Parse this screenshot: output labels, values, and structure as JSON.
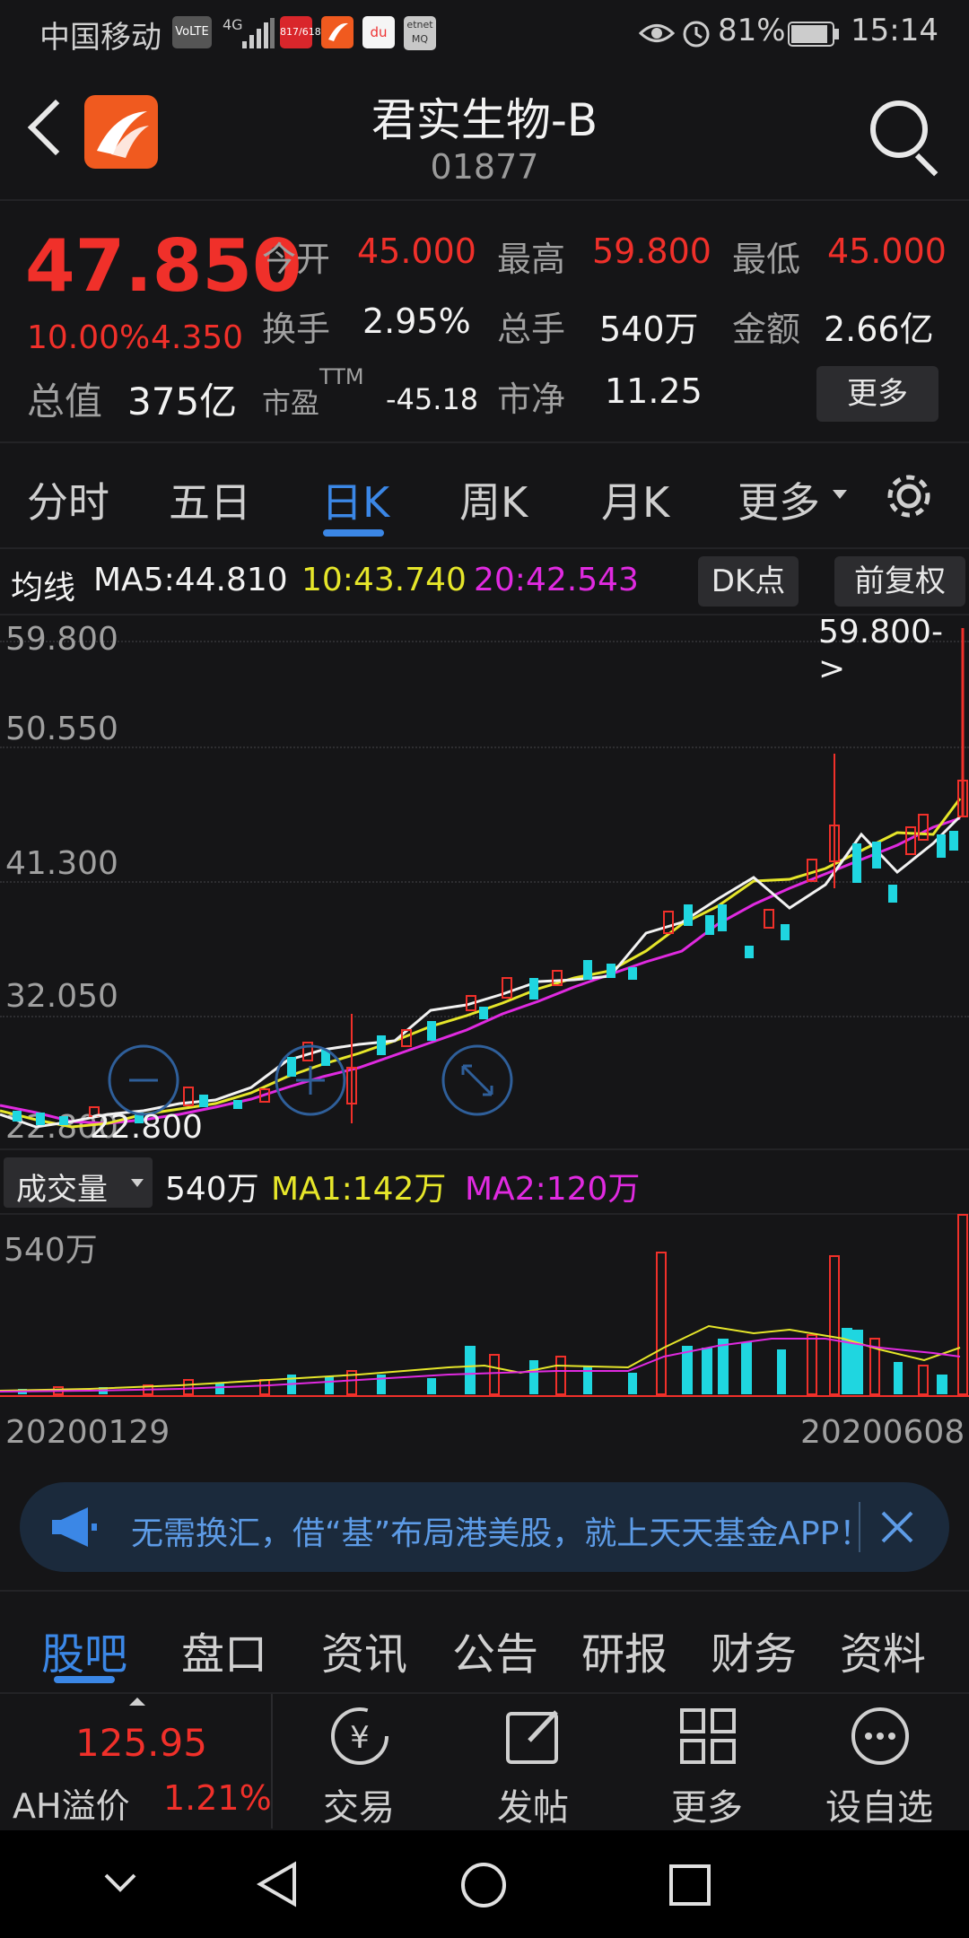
{
  "status_bar": {
    "carrier": "中国移动",
    "volte": "VoLTE",
    "signal": "4G",
    "app_badges": [
      "817/618",
      "du",
      "etnet MQ"
    ],
    "battery": "81%",
    "time": "15:14"
  },
  "header": {
    "title": "君实生物-B",
    "code": "01877"
  },
  "quote": {
    "price": "47.850",
    "change_pct": "10.00%",
    "change": "4.350",
    "market_value_label": "总值",
    "market_value": "375亿",
    "rows": [
      [
        {
          "label": "今开",
          "value": "45.000"
        },
        {
          "label": "最高",
          "value": "59.800"
        },
        {
          "label": "最低",
          "value": "45.000"
        }
      ],
      [
        {
          "label": "换手",
          "value": "2.95%"
        },
        {
          "label": "总手",
          "value": "540万"
        },
        {
          "label": "金额",
          "value": "2.66亿"
        }
      ]
    ],
    "pe_label": "市盈",
    "pe_sup": "TTM",
    "pe_value": "-45.18",
    "pb_label": "市净",
    "pb_value": "11.25",
    "more_button": "更多"
  },
  "period_tabs": [
    "分时",
    "五日",
    "日K",
    "周K",
    "月K",
    "更多"
  ],
  "active_period": "日K",
  "ma_bar": {
    "prefix": "均线",
    "ma5": "MA5:44.810",
    "ma10": "10:43.740",
    "ma20": "20:42.543",
    "dk_button": "DK点",
    "adjust_button": "前复权"
  },
  "kline": {
    "price_labels": [
      "59.800",
      "50.550",
      "41.300",
      "32.050",
      "22.800"
    ],
    "high_marker": "59.800->",
    "low_marker": "22.800"
  },
  "volume": {
    "selector": "成交量",
    "current": "540万",
    "ma1": "MA1:142万",
    "ma2": "MA2:120万",
    "axis_max": "540万",
    "date_start": "20200129",
    "date_end": "20200608"
  },
  "colors": {
    "up": "#f0302a",
    "down": "#1fd6e0",
    "ma5": "#f2f2f2",
    "ma10": "#e6e62a",
    "ma20": "#e02ae0",
    "accent": "#3b87e6"
  },
  "ad_banner": {
    "text": "无需换汇，借“基”布局港美股，就上天天基金APP！"
  },
  "content_tabs": [
    "股吧",
    "盘口",
    "资讯",
    "公告",
    "研报",
    "财务",
    "资料"
  ],
  "active_content_tab": "股吧",
  "bottom_toolbar": {
    "ah_value": "125.95",
    "ah_label": "AH溢价",
    "ah_pct": "1.21%",
    "actions": [
      "交易",
      "发帖",
      "更多",
      "设自选"
    ]
  }
}
